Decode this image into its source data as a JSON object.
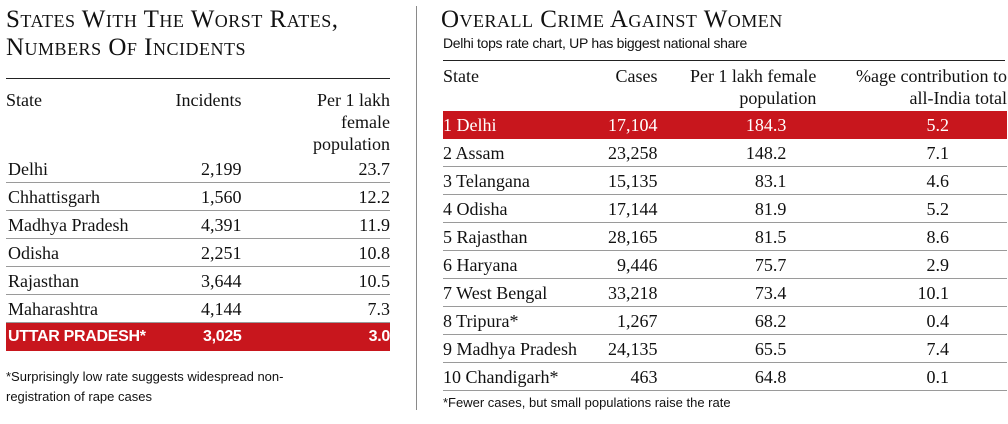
{
  "left": {
    "title": "States With The Worst Rates, Numbers Of Incidents",
    "headers": {
      "state": "State",
      "incidents": "Incidents",
      "rate": "Per 1 lakh female population"
    },
    "rows": [
      {
        "state": "Delhi",
        "incidents": "2,199",
        "rate": "23.7"
      },
      {
        "state": "Chhattisgarh",
        "incidents": "1,560",
        "rate": "12.2"
      },
      {
        "state": "Madhya Pradesh",
        "incidents": "4,391",
        "rate": "11.9"
      },
      {
        "state": "Odisha",
        "incidents": "2,251",
        "rate": "10.8"
      },
      {
        "state": "Rajasthan",
        "incidents": "3,644",
        "rate": "10.5"
      },
      {
        "state": "Maharashtra",
        "incidents": "4,144",
        "rate": "7.3"
      },
      {
        "state": "UTTAR PRADESH*",
        "incidents": "3,025",
        "rate": "3.0"
      }
    ],
    "note": "*Surprisingly low rate suggests widespread non-registration of rape cases"
  },
  "right": {
    "title": "Overall Crime Against Women",
    "subtitle": "Delhi tops rate chart, UP has biggest national share",
    "headers": {
      "state": "State",
      "cases": "Cases",
      "rate": "Per 1 lakh female population",
      "share": "%age contribution to all-India total"
    },
    "rows": [
      {
        "state": "1 Delhi",
        "cases": "17,104",
        "rate": "184.3",
        "share": "5.2"
      },
      {
        "state": "2 Assam",
        "cases": "23,258",
        "rate": "148.2",
        "share": "7.1"
      },
      {
        "state": "3 Telangana",
        "cases": "15,135",
        "rate": "83.1",
        "share": "4.6"
      },
      {
        "state": "4 Odisha",
        "cases": "17,144",
        "rate": "81.9",
        "share": "5.2"
      },
      {
        "state": "5 Rajasthan",
        "cases": "28,165",
        "rate": "81.5",
        "share": "8.6"
      },
      {
        "state": "6 Haryana",
        "cases": "9,446",
        "rate": "75.7",
        "share": "2.9"
      },
      {
        "state": "7 West Bengal",
        "cases": "33,218",
        "rate": "73.4",
        "share": "10.1"
      },
      {
        "state": "8 Tripura*",
        "cases": "1,267",
        "rate": "68.2",
        "share": "0.4"
      },
      {
        "state": "9 Madhya Pradesh",
        "cases": "24,135",
        "rate": "65.5",
        "share": "7.4"
      },
      {
        "state": "10 Chandigarh*",
        "cases": "463",
        "rate": "64.8",
        "share": "0.1"
      }
    ],
    "note": "*Fewer cases, but small populations raise the rate"
  },
  "colors": {
    "highlight": "#c8161d",
    "divider": "#8a8a8a"
  }
}
